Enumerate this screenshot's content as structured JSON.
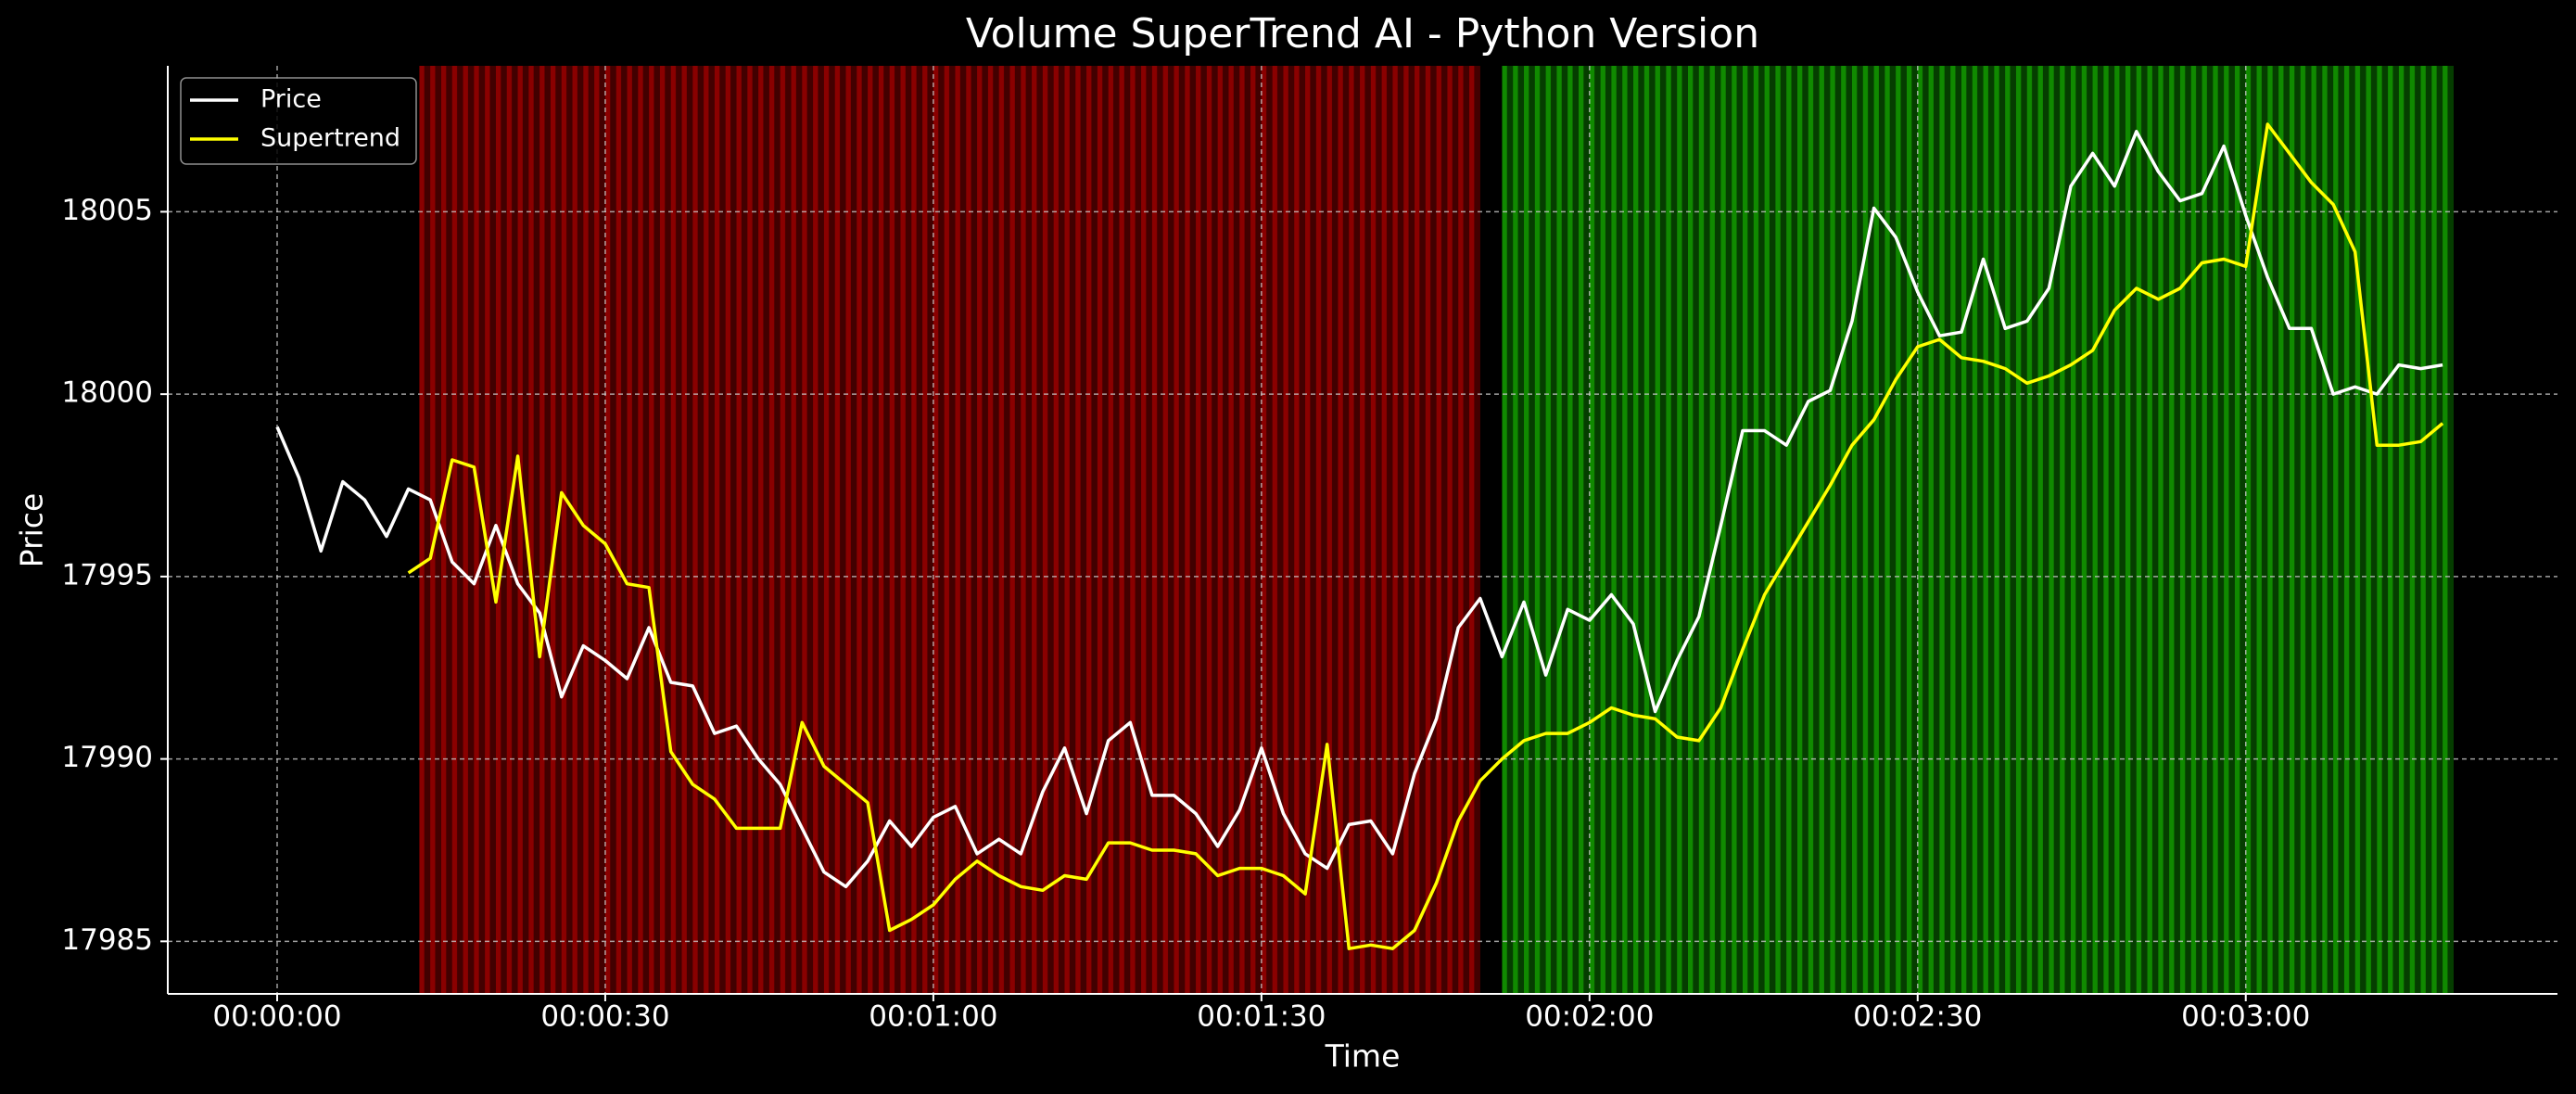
{
  "chart_data": {
    "type": "line",
    "title": "Volume SuperTrend AI - Python Version",
    "x_label": "Time",
    "y_label": "Price",
    "x": [
      0,
      2,
      4,
      6,
      8,
      10,
      12,
      14,
      16,
      18,
      20,
      22,
      24,
      26,
      28,
      30,
      32,
      34,
      36,
      38,
      40,
      42,
      44,
      46,
      48,
      50,
      52,
      54,
      56,
      58,
      60,
      62,
      64,
      66,
      68,
      70,
      72,
      74,
      76,
      78,
      80,
      82,
      84,
      86,
      88,
      90,
      92,
      94,
      96,
      98,
      100,
      102,
      104,
      106,
      108,
      110,
      112,
      114,
      116,
      118,
      120,
      122,
      124,
      126,
      128,
      130,
      132,
      134,
      136,
      138,
      140,
      142,
      144,
      146,
      148,
      150,
      152,
      154,
      156,
      158,
      160,
      162,
      164,
      166,
      168,
      170,
      172,
      174,
      176,
      178,
      180,
      182,
      184,
      186,
      188,
      190,
      192,
      194,
      196,
      198
    ],
    "series": [
      {
        "name": "Price",
        "color": "#ffffff",
        "values": [
          17999.1,
          17997.7,
          17995.7,
          17997.6,
          17997.1,
          17996.1,
          17997.4,
          17997.1,
          17995.4,
          17994.8,
          17996.4,
          17994.8,
          17994.0,
          17991.7,
          17993.1,
          17992.7,
          17992.2,
          17993.6,
          17992.1,
          17992.0,
          17990.7,
          17990.9,
          17990.0,
          17989.3,
          17988.1,
          17986.9,
          17986.5,
          17987.2,
          17988.3,
          17987.6,
          17988.4,
          17988.7,
          17987.4,
          17987.8,
          17987.4,
          17989.1,
          17990.3,
          17988.5,
          17990.5,
          17991.0,
          17989.0,
          17989.0,
          17988.5,
          17987.6,
          17988.6,
          17990.3,
          17988.5,
          17987.4,
          17987.0,
          17988.2,
          17988.3,
          17987.4,
          17989.6,
          17991.1,
          17993.6,
          17994.4,
          17992.8,
          17994.3,
          17992.3,
          17994.1,
          17993.8,
          17994.5,
          17993.7,
          17991.3,
          17992.7,
          17993.9,
          17996.4,
          17999.0,
          17999.0,
          17998.6,
          17999.8,
          18000.1,
          18002.0,
          18005.1,
          18004.3,
          18002.8,
          18001.6,
          18001.7,
          18003.7,
          18001.8,
          18002.0,
          18002.9,
          18005.7,
          18006.6,
          18005.7,
          18007.2,
          18006.1,
          18005.3,
          18005.5,
          18006.8,
          18004.9,
          18003.2,
          18001.8,
          18001.8,
          18000.0,
          18000.2,
          18000.0,
          18000.8,
          18000.7,
          18000.8
        ]
      },
      {
        "name": "Supertrend",
        "color": "#ffff00",
        "values": [
          null,
          null,
          null,
          null,
          null,
          null,
          17995.1,
          17995.5,
          17998.2,
          17998.0,
          17994.3,
          17998.3,
          17992.8,
          17997.3,
          17996.4,
          17995.9,
          17994.8,
          17994.7,
          17990.2,
          17989.3,
          17988.9,
          17988.1,
          17988.1,
          17988.1,
          17991.0,
          17989.8,
          17989.3,
          17988.8,
          17985.3,
          17985.6,
          17986.0,
          17986.7,
          17987.2,
          17986.8,
          17986.5,
          17986.4,
          17986.8,
          17986.7,
          17987.7,
          17987.7,
          17987.5,
          17987.5,
          17987.4,
          17986.8,
          17987.0,
          17987.0,
          17986.8,
          17986.3,
          17990.4,
          17984.8,
          17984.9,
          17984.8,
          17985.3,
          17986.6,
          17988.3,
          17989.4,
          17990.0,
          17990.5,
          17990.7,
          17990.7,
          17991.0,
          17991.4,
          17991.2,
          17991.1,
          17990.6,
          17990.5,
          17991.4,
          17993.0,
          17994.5,
          17995.5,
          17996.5,
          17997.5,
          17998.6,
          17999.3,
          18000.4,
          18001.3,
          18001.5,
          18001.0,
          18000.9,
          18000.7,
          18000.3,
          18000.5,
          18000.8,
          18001.2,
          18002.3,
          18002.9,
          18002.6,
          18002.9,
          18003.6,
          18003.7,
          18003.5,
          18007.4,
          18006.6,
          18005.8,
          18005.2,
          18003.9,
          17998.6,
          17998.6,
          17998.7,
          17999.2
        ]
      }
    ],
    "bands": [
      {
        "start": 13,
        "end": 110,
        "color": "#420000",
        "stripe_color": "#8a0000"
      },
      {
        "start": 112,
        "end": 199,
        "color": "#053d00",
        "stripe_color": "#108a00"
      }
    ],
    "xlim": [
      -10,
      208.5
    ],
    "ylim": [
      17983.56,
      18009.0
    ],
    "xticks": [
      {
        "value": 0,
        "label": "00:00:00"
      },
      {
        "value": 30,
        "label": "00:00:30"
      },
      {
        "value": 60,
        "label": "00:01:00"
      },
      {
        "value": 90,
        "label": "00:01:30"
      },
      {
        "value": 120,
        "label": "00:02:00"
      },
      {
        "value": 150,
        "label": "00:02:30"
      },
      {
        "value": 180,
        "label": "00:03:00"
      }
    ],
    "yticks": [
      17985,
      17990,
      17995,
      18000,
      18005
    ],
    "grid": true,
    "legend": "upper left"
  }
}
